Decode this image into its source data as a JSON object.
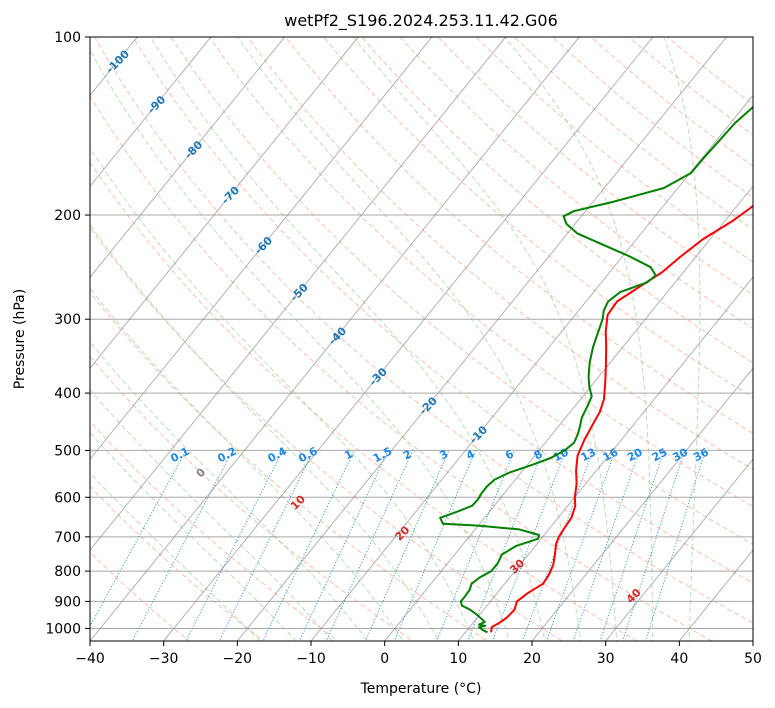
{
  "chart_data": {
    "type": "line",
    "chart_kind": "skew-T log-P",
    "title": "wetPf2_S196.2024.253.11.42.G06",
    "xlabel": "Temperature (°C)",
    "ylabel": "Pressure (hPa)",
    "xlim": [
      -40,
      50
    ],
    "ylim": [
      1050,
      100
    ],
    "y_scale": "log",
    "grid": true,
    "x_ticks": [
      "−40",
      "−30",
      "−20",
      "−10",
      "0",
      "10",
      "20",
      "30",
      "40",
      "50"
    ],
    "x_tick_values": [
      -40,
      -30,
      -20,
      -10,
      0,
      10,
      20,
      30,
      40,
      50
    ],
    "y_ticks": [
      "100",
      "200",
      "300",
      "400",
      "500",
      "600",
      "700",
      "800",
      "900",
      "1000"
    ],
    "y_tick_values": [
      100,
      200,
      300,
      400,
      500,
      600,
      700,
      800,
      900,
      1000
    ],
    "colors": {
      "temperature": "#ff0000",
      "dewpoint": "#008000",
      "isotherm": "#808080",
      "isobar": "#a8a8a8",
      "dry_adiabat": "#ff8c69",
      "moist_adiabat": "#66bb66",
      "mixing_ratio": "#1e88e5",
      "isotherm_label": "#1f77b4",
      "mixing_label": "#1e88e5",
      "theta_label": "#d62728"
    },
    "series": [
      {
        "key": "temperature",
        "points": [
          [
            1015,
            13.5
          ],
          [
            995,
            13.0
          ],
          [
            980,
            13.5
          ],
          [
            960,
            14.0
          ],
          [
            930,
            14.2
          ],
          [
            900,
            13.6
          ],
          [
            870,
            14.2
          ],
          [
            840,
            15.2
          ],
          [
            810,
            15.0
          ],
          [
            780,
            14.5
          ],
          [
            750,
            13.6
          ],
          [
            720,
            12.6
          ],
          [
            700,
            12.2
          ],
          [
            680,
            12.0
          ],
          [
            650,
            11.8
          ],
          [
            620,
            11.0
          ],
          [
            600,
            10.0
          ],
          [
            570,
            8.8
          ],
          [
            540,
            7.2
          ],
          [
            510,
            5.8
          ],
          [
            480,
            5.0
          ],
          [
            455,
            4.5
          ],
          [
            430,
            4.0
          ],
          [
            410,
            3.2
          ],
          [
            385,
            1.6
          ],
          [
            360,
            -0.2
          ],
          [
            335,
            -2.2
          ],
          [
            315,
            -4.0
          ],
          [
            295,
            -5.6
          ],
          [
            280,
            -5.8
          ],
          [
            265,
            -4.4
          ],
          [
            250,
            -2.9
          ],
          [
            235,
            -2.1
          ],
          [
            220,
            -1.0
          ],
          [
            205,
            1.0
          ],
          [
            195,
            2.0
          ],
          [
            185,
            2.8
          ],
          [
            175,
            3.4
          ],
          [
            165,
            4.1
          ],
          [
            155,
            5.3
          ],
          [
            145,
            6.6
          ],
          [
            135,
            8.4
          ],
          [
            125,
            10.8
          ],
          [
            115,
            13.8
          ],
          [
            105,
            17.3
          ],
          [
            100,
            18.6
          ]
        ]
      },
      {
        "key": "dewpoint",
        "points": [
          [
            1015,
            13.0
          ],
          [
            1005,
            12.0
          ],
          [
            995,
            11.3
          ],
          [
            990,
            12.0
          ],
          [
            985,
            11.0
          ],
          [
            975,
            11.5
          ],
          [
            950,
            9.8
          ],
          [
            930,
            8.2
          ],
          [
            915,
            6.6
          ],
          [
            900,
            6.0
          ],
          [
            880,
            6.0
          ],
          [
            860,
            5.9
          ],
          [
            840,
            5.5
          ],
          [
            820,
            5.9
          ],
          [
            800,
            6.8
          ],
          [
            775,
            6.8
          ],
          [
            750,
            6.4
          ],
          [
            725,
            7.4
          ],
          [
            705,
            9.6
          ],
          [
            695,
            9.3
          ],
          [
            680,
            6.0
          ],
          [
            670,
            0.0
          ],
          [
            665,
            -5.0
          ],
          [
            650,
            -6.0
          ],
          [
            635,
            -4.4
          ],
          [
            620,
            -3.0
          ],
          [
            605,
            -2.9
          ],
          [
            590,
            -3.1
          ],
          [
            575,
            -3.1
          ],
          [
            560,
            -2.8
          ],
          [
            545,
            -1.6
          ],
          [
            530,
            0.5
          ],
          [
            515,
            2.4
          ],
          [
            500,
            3.5
          ],
          [
            485,
            3.9
          ],
          [
            470,
            3.5
          ],
          [
            455,
            2.9
          ],
          [
            440,
            2.2
          ],
          [
            420,
            1.7
          ],
          [
            405,
            1.2
          ],
          [
            390,
            -0.2
          ],
          [
            375,
            -1.4
          ],
          [
            355,
            -2.8
          ],
          [
            335,
            -4.0
          ],
          [
            315,
            -5.0
          ],
          [
            300,
            -5.8
          ],
          [
            290,
            -6.6
          ],
          [
            280,
            -7.0
          ],
          [
            270,
            -6.4
          ],
          [
            260,
            -3.8
          ],
          [
            253,
            -3.4
          ],
          [
            245,
            -5.0
          ],
          [
            235,
            -9.0
          ],
          [
            225,
            -13.7
          ],
          [
            215,
            -18.6
          ],
          [
            207,
            -21.2
          ],
          [
            201,
            -22.4
          ],
          [
            197,
            -21.6
          ],
          [
            190,
            -17.3
          ],
          [
            180,
            -11.9
          ],
          [
            170,
            -9.9
          ],
          [
            160,
            -9.8
          ],
          [
            150,
            -9.6
          ],
          [
            140,
            -9.4
          ],
          [
            130,
            -8.6
          ],
          [
            120,
            -7.2
          ],
          [
            110,
            -5.5
          ],
          [
            100,
            -3.0
          ]
        ]
      }
    ],
    "annotations": {
      "isotherms": [
        {
          "label": "-100",
          "T": -100,
          "p": 110
        },
        {
          "label": "-90",
          "T": -90,
          "p": 130
        },
        {
          "label": "-80",
          "T": -80,
          "p": 155
        },
        {
          "label": "-70",
          "T": -70,
          "p": 185
        },
        {
          "label": "-60",
          "T": -60,
          "p": 225
        },
        {
          "label": "-50",
          "T": -50,
          "p": 270
        },
        {
          "label": "-40",
          "T": -40,
          "p": 320
        },
        {
          "label": "-30",
          "T": -30,
          "p": 375
        },
        {
          "label": "-20",
          "T": -20,
          "p": 420
        },
        {
          "label": "-10",
          "T": -10,
          "p": 470
        }
      ],
      "mixing_ratio": [
        {
          "label": "0.1",
          "w": 0.1
        },
        {
          "label": "0.2",
          "w": 0.2
        },
        {
          "label": "0.4",
          "w": 0.4
        },
        {
          "label": "0.6",
          "w": 0.6
        },
        {
          "label": "1",
          "w": 1
        },
        {
          "label": "1.5",
          "w": 1.5
        },
        {
          "label": "2",
          "w": 2
        },
        {
          "label": "3",
          "w": 3
        },
        {
          "label": "4",
          "w": 4
        },
        {
          "label": "6",
          "w": 6
        },
        {
          "label": "8",
          "w": 8
        },
        {
          "label": "10",
          "w": 10
        },
        {
          "label": "13",
          "w": 13
        },
        {
          "label": "16",
          "w": 16
        },
        {
          "label": "20",
          "w": 20
        },
        {
          "label": "25",
          "w": 25
        },
        {
          "label": "30",
          "w": 30
        },
        {
          "label": "36",
          "w": 36
        }
      ],
      "potential_temperature": [
        {
          "label": "0",
          "theta": 0,
          "p": 545
        },
        {
          "label": "10",
          "theta": 10,
          "p": 612
        },
        {
          "label": "20",
          "theta": 20,
          "p": 690
        },
        {
          "label": "30",
          "theta": 30,
          "p": 785
        },
        {
          "label": "40",
          "theta": 40,
          "p": 880
        }
      ]
    }
  }
}
